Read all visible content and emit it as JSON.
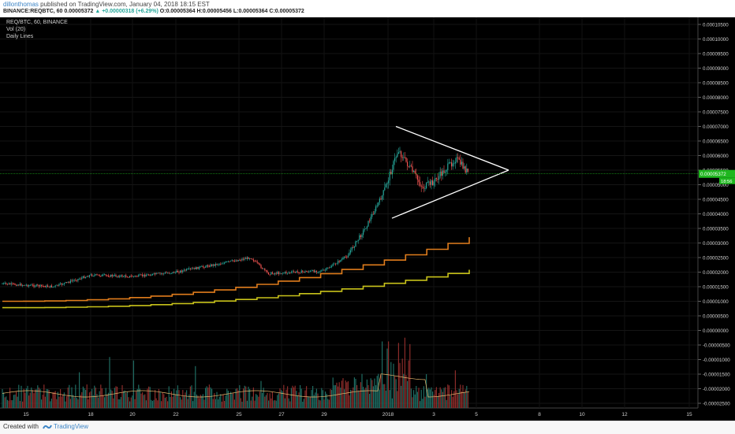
{
  "header": {
    "author": "dillonthomas",
    "published_text": "published on TradingView.com, January 04, 2018 18:15 EST",
    "symbol_line": "BINANCE:REQBTC, 60",
    "last_value": "0.00005372",
    "change": "▲ +0.00000318 (+6.29%)",
    "ohlc": {
      "o_label": "O:",
      "o": "0.00005364",
      "h_label": "H:",
      "h": "0.00005456",
      "l_label": "L:",
      "l": "0.00005364",
      "c_label": "C:",
      "c": "0.00005372"
    }
  },
  "legend": {
    "title": "REQ/BTC, 60, BINANCE",
    "volume": "Vol (20)",
    "study": "Daily Lines"
  },
  "footer": {
    "created_with": "Created with",
    "brand": "TradingView"
  },
  "colors": {
    "background": "#000000",
    "up": "#26a69a",
    "down": "#ef5350",
    "line_orange": "#e07c1c",
    "line_yellow": "#c8c21a",
    "triangle": "#ffffff",
    "price_marker": "#1fb71f"
  },
  "chart_data": {
    "type": "candlestick",
    "title": "REQ/BTC, 60, BINANCE",
    "x_ticks": [
      "15",
      "18",
      "20",
      "22",
      "25",
      "27",
      "29",
      "2018",
      "3",
      "5",
      "8",
      "10",
      "12",
      "15"
    ],
    "y_ticks": [
      "0.00010500",
      "0.00010000",
      "0.00009500",
      "0.00009000",
      "0.00008500",
      "0.00008000",
      "0.00007500",
      "0.00007000",
      "0.00006500",
      "0.00006000",
      "0.00005500",
      "0.00005000",
      "0.00004500",
      "0.00004000",
      "0.00003500",
      "0.00003000",
      "0.00002500",
      "0.00002000",
      "0.00001500",
      "0.00001000",
      "0.00000500",
      "0.00000000",
      "-0.00000500",
      "-0.00001000",
      "-0.00001500",
      "-0.00002000",
      "-0.00002500"
    ],
    "ylim": [
      -2.75e-05,
      0.000107
    ],
    "current_price": "0.00005372",
    "current_price_label": "18:56",
    "trend_keypoints": [
      {
        "x": "Dec 14",
        "y": 1.6e-05
      },
      {
        "x": "Dec 17",
        "y": 1.5e-05
      },
      {
        "x": "Dec 19",
        "y": 1.9e-05
      },
      {
        "x": "Dec 21",
        "y": 1.85e-05
      },
      {
        "x": "Dec 23",
        "y": 2e-05
      },
      {
        "x": "Dec 25",
        "y": 2.5e-05
      },
      {
        "x": "Dec 27",
        "y": 1.95e-05
      },
      {
        "x": "Dec 29",
        "y": 2.05e-05
      },
      {
        "x": "Dec 30",
        "y": 2.55e-05
      },
      {
        "x": "Dec 31",
        "y": 3.5e-05
      },
      {
        "x": "Jan 1",
        "y": 4.7e-05
      },
      {
        "x": "Jan 2",
        "y": 6.2e-05
      },
      {
        "x": "Jan 2 12h",
        "y": 4.9e-05
      },
      {
        "x": "Jan 3",
        "y": 5.1e-05
      },
      {
        "x": "Jan 4",
        "y": 5.9e-05
      },
      {
        "x": "Jan 4 18h",
        "y": 5.37e-05
      }
    ],
    "daily_line_orange": {
      "start": 1e-05,
      "end": 3.2e-05
    },
    "daily_line_yellow": {
      "start": 7.8e-06,
      "end": 2.08e-05
    },
    "triangle": {
      "upper_start": {
        "x": "Jan 2",
        "y": 7e-05
      },
      "apex": {
        "x": "Jan 6",
        "y": 5.5e-05
      },
      "lower_start": {
        "x": "Jan 2",
        "y": 3.85e-05
      }
    },
    "volume_scale_note": "volume drawn as histogram in lower pane",
    "grid": true
  }
}
